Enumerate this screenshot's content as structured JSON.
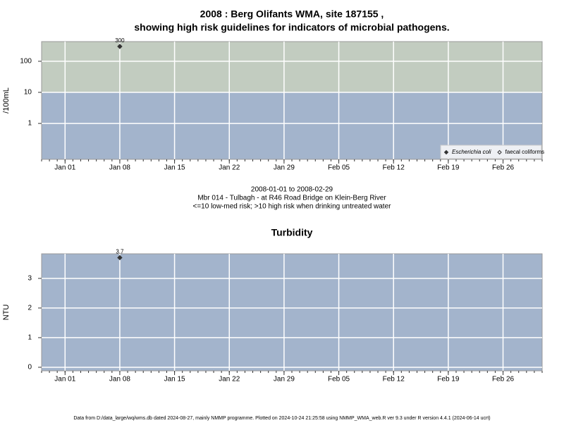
{
  "chart_data": [
    {
      "type": "scatter",
      "title": [
        "2008 : Berg Olifants WMA, site 187155 ,",
        "showing high risk guidelines for indicators of microbial pathogens."
      ],
      "notes": [
        "2008-01-01 to 2008-02-29",
        "Mbr 014 - Tulbagh - at R46 Road Bridge on Klein-Berg River",
        "<=10 low-med risk; >10 high risk when drinking untreated water"
      ],
      "y_label": "/100mL",
      "x": [
        "2008-01-08"
      ],
      "series": [
        {
          "name": "Escherichia coli",
          "color": "#333333",
          "marker": "filled-diamond",
          "values": [
            300
          ],
          "value_labels": [
            "300"
          ]
        },
        {
          "name": "faecal coliforms",
          "color": "#333333",
          "marker": "open-diamond",
          "values": [
            null
          ]
        }
      ],
      "xlim": [
        "2007-12-29",
        "2008-03-02"
      ],
      "xticks": [
        {
          "value": "2008-01-01",
          "label": "Jan 01"
        },
        {
          "value": "2008-01-08",
          "label": "Jan 08"
        },
        {
          "value": "2008-01-15",
          "label": "Jan 15"
        },
        {
          "value": "2008-01-22",
          "label": "Jan 22"
        },
        {
          "value": "2008-01-29",
          "label": "Jan 29"
        },
        {
          "value": "2008-02-05",
          "label": "Feb 05"
        },
        {
          "value": "2008-02-12",
          "label": "Feb 12"
        },
        {
          "value": "2008-02-19",
          "label": "Feb 19"
        },
        {
          "value": "2008-02-26",
          "label": "Feb 26"
        }
      ],
      "ylim": [
        0.07,
        430
      ],
      "yticks": [
        1,
        10,
        100
      ],
      "log_y": true,
      "threshold": 10,
      "band_colors": [
        "#a3b4cc",
        "#c2ccc0"
      ],
      "grid": true,
      "legend": "bottom-right"
    },
    {
      "type": "scatter",
      "title": [
        "Turbidity"
      ],
      "y_label": "NTU",
      "x": [
        "2008-01-08"
      ],
      "series": [
        {
          "name": "Turbidity",
          "color": "#333333",
          "marker": "filled-diamond",
          "values": [
            3.7
          ]
        }
      ],
      "xlim": [
        "2007-12-29",
        "2008-03-02"
      ],
      "xticks": [
        {
          "value": "2008-01-01",
          "label": "Jan 01"
        },
        {
          "value": "2008-01-08",
          "label": "Jan 08"
        },
        {
          "value": "2008-01-15",
          "label": "Jan 15"
        },
        {
          "value": "2008-01-22",
          "label": "Jan 22"
        },
        {
          "value": "2008-01-29",
          "label": "Jan 29"
        },
        {
          "value": "2008-02-05",
          "label": "Feb 05"
        },
        {
          "value": "2008-02-12",
          "label": "Feb 12"
        },
        {
          "value": "2008-02-19",
          "label": "Feb 19"
        },
        {
          "value": "2008-02-26",
          "label": "Feb 26"
        }
      ],
      "ylim": [
        -0.12,
        3.83
      ],
      "yticks": [
        0,
        1,
        2,
        3
      ],
      "log_y": false,
      "band_colors": [
        "#a3b4cc"
      ],
      "grid": true
    }
  ],
  "footer": "Data from D:/data_large/wq/wms.db dated 2024-08-27, mainly NMMP programme. Plotted on 2024-10-24 21:25:58 using NMMP_WMA_web.R ver 9.3 under R version 4.4.1 (2024-06-14 ucrt)"
}
